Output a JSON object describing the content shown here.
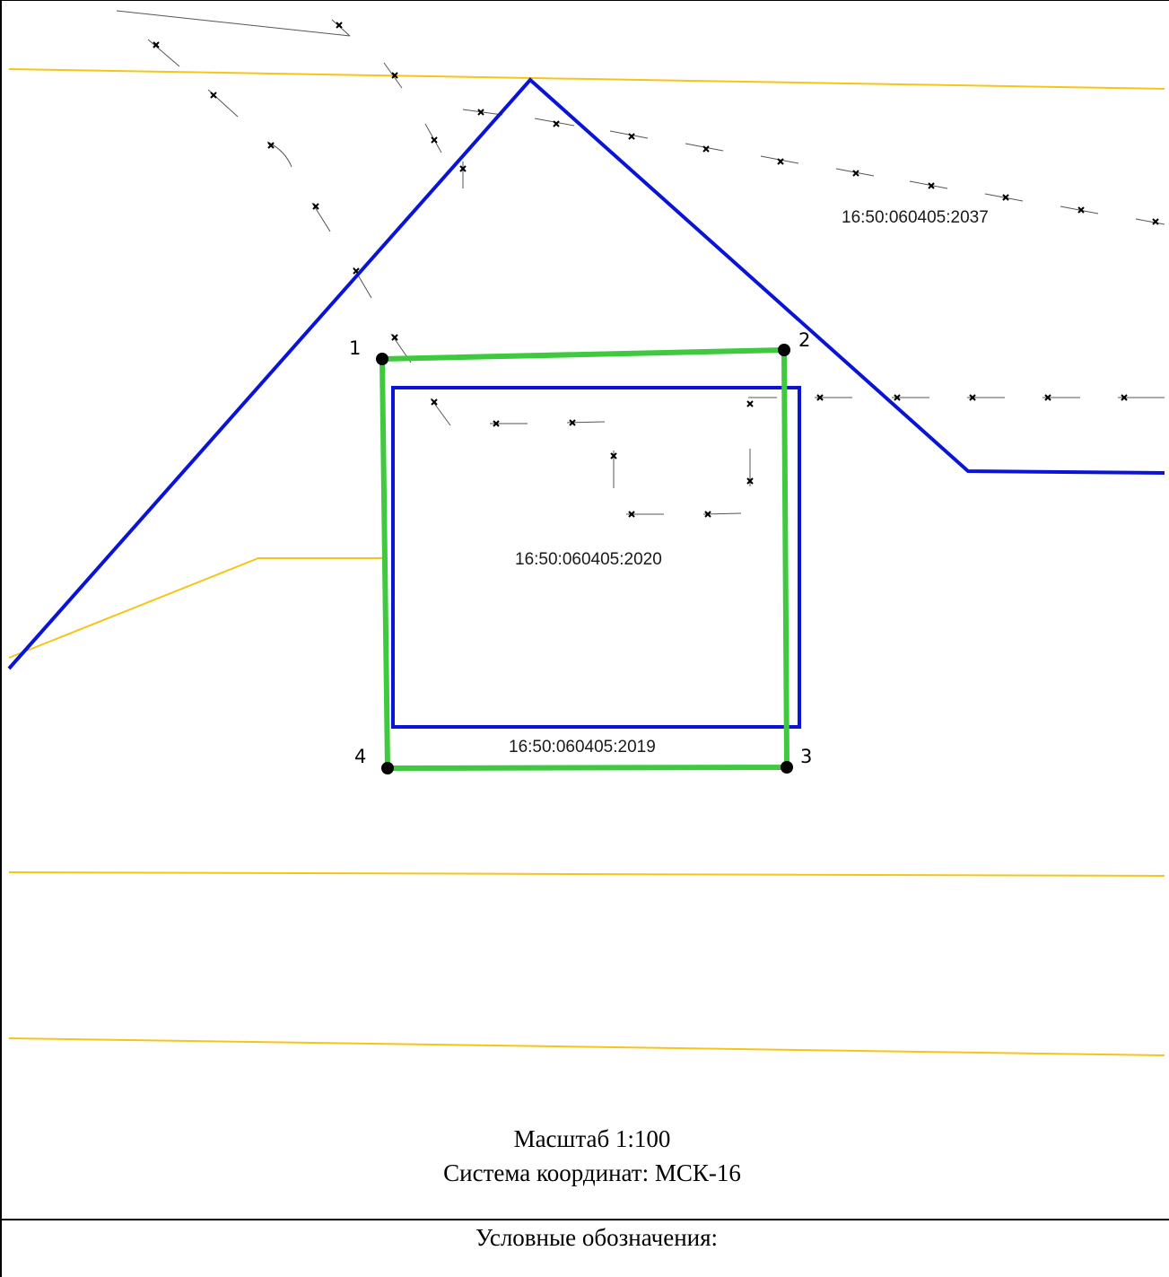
{
  "parcels": {
    "p2037": "16:50:060405:2037",
    "p2020": "16:50:060405:2020",
    "p2019": "16:50:060405:2019"
  },
  "points": [
    "1",
    "2",
    "3",
    "4"
  ],
  "scale": "Масштаб 1:100",
  "crs": "Система координат: МСК-16",
  "legend_title": "Условные обозначения:",
  "colors": {
    "parcel_boundary": "#0a14d6",
    "new_boundary": "#3ec93e",
    "zone_line": "#f5c518",
    "fence": "#333333"
  }
}
